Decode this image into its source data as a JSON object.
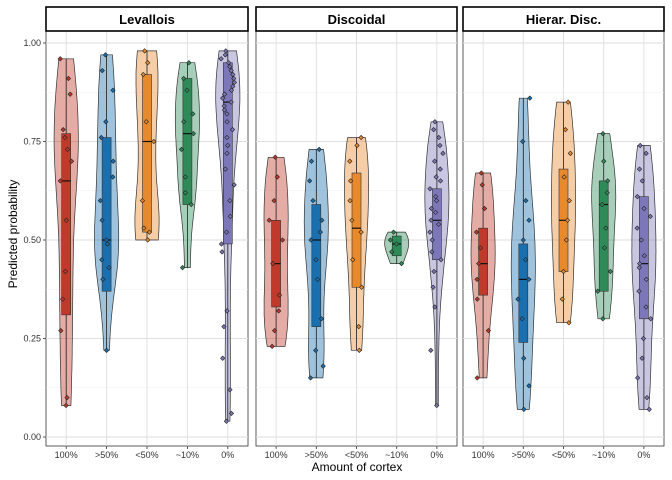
{
  "chart_data": {
    "type": "violin",
    "xlabel": "Amount of cortex",
    "ylabel": "Predicted probability",
    "ylim": [
      0,
      1
    ],
    "yticks": [
      "0.00",
      "0.25",
      "0.50",
      "0.75",
      "1.00"
    ],
    "categories": [
      "100%",
      ">50%",
      "<50%",
      "~10%",
      "0%"
    ],
    "grid": true,
    "colors": {
      "100%": "#C0392B",
      ">50%": "#1A6FAF",
      "<50%": "#E8892B",
      "~10%": "#2E8B57",
      "0%": "#7B77B8"
    },
    "panels": [
      {
        "name": "Levallois",
        "groups": [
          {
            "category": "100%",
            "min": 0.08,
            "q1": 0.31,
            "median": 0.65,
            "q3": 0.77,
            "max": 0.96,
            "points": [
              0.08,
              0.1,
              0.27,
              0.35,
              0.42,
              0.55,
              0.65,
              0.7,
              0.73,
              0.76,
              0.78,
              0.87,
              0.91,
              0.96
            ]
          },
          {
            "category": ">50%",
            "min": 0.22,
            "q1": 0.37,
            "median": 0.5,
            "q3": 0.76,
            "max": 0.97,
            "points": [
              0.22,
              0.4,
              0.43,
              0.45,
              0.49,
              0.5,
              0.55,
              0.6,
              0.66,
              0.7,
              0.76,
              0.8,
              0.88,
              0.93,
              0.97
            ]
          },
          {
            "category": "<50%",
            "min": 0.5,
            "q1": 0.52,
            "median": 0.75,
            "q3": 0.92,
            "max": 0.98,
            "points": [
              0.5,
              0.52,
              0.53,
              0.6,
              0.75,
              0.8,
              0.92,
              0.95,
              0.98
            ]
          },
          {
            "category": "~10%",
            "min": 0.43,
            "q1": 0.59,
            "median": 0.77,
            "q3": 0.91,
            "max": 0.95,
            "points": [
              0.43,
              0.59,
              0.62,
              0.66,
              0.73,
              0.77,
              0.8,
              0.82,
              0.88,
              0.91,
              0.95
            ]
          },
          {
            "category": "0%",
            "min": 0.04,
            "q1": 0.49,
            "median": 0.85,
            "q3": 0.95,
            "max": 0.98,
            "points": [
              0.04,
              0.06,
              0.12,
              0.2,
              0.28,
              0.32,
              0.47,
              0.49,
              0.52,
              0.56,
              0.6,
              0.64,
              0.68,
              0.72,
              0.74,
              0.76,
              0.78,
              0.8,
              0.82,
              0.83,
              0.84,
              0.85,
              0.86,
              0.87,
              0.88,
              0.89,
              0.9,
              0.91,
              0.92,
              0.93,
              0.94,
              0.95,
              0.96,
              0.97,
              0.98
            ]
          }
        ]
      },
      {
        "name": "Discoidal",
        "groups": [
          {
            "category": "100%",
            "min": 0.23,
            "q1": 0.33,
            "median": 0.44,
            "q3": 0.55,
            "max": 0.71,
            "points": [
              0.23,
              0.27,
              0.32,
              0.36,
              0.44,
              0.5,
              0.55,
              0.6,
              0.66,
              0.71
            ]
          },
          {
            "category": ">50%",
            "min": 0.15,
            "q1": 0.28,
            "median": 0.5,
            "q3": 0.59,
            "max": 0.73,
            "points": [
              0.15,
              0.18,
              0.22,
              0.3,
              0.4,
              0.45,
              0.5,
              0.52,
              0.55,
              0.6,
              0.65,
              0.7,
              0.73
            ]
          },
          {
            "category": "<50%",
            "min": 0.22,
            "q1": 0.38,
            "median": 0.53,
            "q3": 0.67,
            "max": 0.76,
            "points": [
              0.22,
              0.28,
              0.38,
              0.45,
              0.52,
              0.55,
              0.6,
              0.65,
              0.7,
              0.74,
              0.76
            ]
          },
          {
            "category": "~10%",
            "min": 0.44,
            "q1": 0.46,
            "median": 0.49,
            "q3": 0.51,
            "max": 0.52,
            "points": [
              0.44,
              0.47,
              0.49,
              0.5,
              0.52
            ]
          },
          {
            "category": "0%",
            "min": 0.08,
            "q1": 0.45,
            "median": 0.55,
            "q3": 0.63,
            "max": 0.8,
            "points": [
              0.08,
              0.22,
              0.33,
              0.38,
              0.42,
              0.45,
              0.47,
              0.5,
              0.52,
              0.54,
              0.55,
              0.57,
              0.58,
              0.6,
              0.61,
              0.63,
              0.65,
              0.66,
              0.68,
              0.7,
              0.72,
              0.74,
              0.76,
              0.78,
              0.8
            ]
          }
        ]
      },
      {
        "name": "Hierar. Disc.",
        "groups": [
          {
            "category": "100%",
            "min": 0.15,
            "q1": 0.36,
            "median": 0.44,
            "q3": 0.53,
            "max": 0.67,
            "points": [
              0.15,
              0.27,
              0.35,
              0.4,
              0.44,
              0.48,
              0.52,
              0.58,
              0.64,
              0.67
            ]
          },
          {
            "category": ">50%",
            "min": 0.07,
            "q1": 0.24,
            "median": 0.4,
            "q3": 0.49,
            "max": 0.86,
            "points": [
              0.07,
              0.13,
              0.2,
              0.3,
              0.35,
              0.4,
              0.45,
              0.5,
              0.55,
              0.6,
              0.75,
              0.86
            ]
          },
          {
            "category": "<50%",
            "min": 0.29,
            "q1": 0.42,
            "median": 0.55,
            "q3": 0.68,
            "max": 0.85,
            "points": [
              0.29,
              0.35,
              0.42,
              0.5,
              0.55,
              0.6,
              0.66,
              0.72,
              0.78,
              0.85
            ]
          },
          {
            "category": "~10%",
            "min": 0.3,
            "q1": 0.37,
            "median": 0.59,
            "q3": 0.65,
            "max": 0.77,
            "points": [
              0.3,
              0.37,
              0.42,
              0.48,
              0.53,
              0.59,
              0.62,
              0.65,
              0.7,
              0.77
            ]
          },
          {
            "category": "0%",
            "min": 0.07,
            "q1": 0.3,
            "median": 0.44,
            "q3": 0.61,
            "max": 0.74,
            "points": [
              0.07,
              0.1,
              0.15,
              0.2,
              0.25,
              0.3,
              0.33,
              0.37,
              0.4,
              0.43,
              0.44,
              0.46,
              0.5,
              0.53,
              0.56,
              0.58,
              0.61,
              0.65,
              0.68,
              0.72,
              0.74
            ]
          }
        ]
      }
    ]
  }
}
